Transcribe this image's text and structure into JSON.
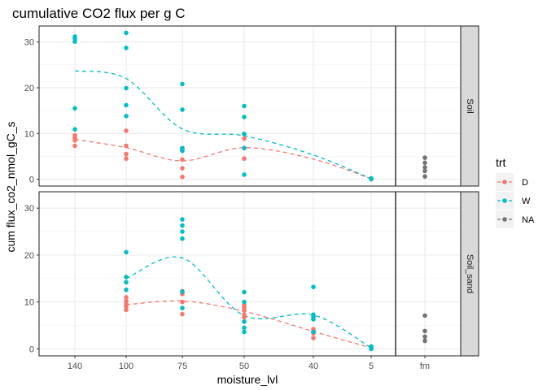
{
  "chart_data": {
    "type": "scatter",
    "title": "cumulative CO2 flux per g C",
    "xlabel": "moisture_lvl",
    "ylabel": "cum flux_co2_nmol_gC_s",
    "x_categories": [
      "140",
      "100",
      "75",
      "50",
      "40",
      "5",
      "fm"
    ],
    "ylim": [
      -1.5,
      33.5
    ],
    "y_ticks": [
      0,
      10,
      20,
      30
    ],
    "grid": true,
    "legend": {
      "title": "trt",
      "position": "right",
      "entries": [
        {
          "name": "D",
          "color": "#F8766D"
        },
        {
          "name": "W",
          "color": "#00BFC4"
        },
        {
          "name": "NA",
          "color": "#737373"
        }
      ]
    },
    "panels": [
      {
        "strip": "Soil",
        "points": [
          {
            "trt": "D",
            "x": "140",
            "y": [
              7.3,
              8.5,
              9.0,
              9.6
            ]
          },
          {
            "trt": "D",
            "x": "100",
            "y": [
              4.5,
              5.5,
              7.3,
              10.6
            ]
          },
          {
            "trt": "D",
            "x": "75",
            "y": [
              0.5,
              2.4,
              4.3,
              6.3,
              6.8
            ]
          },
          {
            "trt": "D",
            "x": "50",
            "y": [
              4.5,
              6.8,
              8.9
            ]
          },
          {
            "trt": "D",
            "x": "5",
            "y": [
              0.1
            ]
          },
          {
            "trt": "W",
            "x": "140",
            "y": [
              10.9,
              15.5,
              30.1,
              30.8,
              31.2
            ]
          },
          {
            "trt": "W",
            "x": "100",
            "y": [
              13.8,
              16.2,
              19.9,
              28.7,
              32.0
            ]
          },
          {
            "trt": "W",
            "x": "75",
            "y": [
              6.2,
              6.8,
              15.2,
              20.8
            ]
          },
          {
            "trt": "W",
            "x": "50",
            "y": [
              1.0,
              6.8,
              9.9,
              13.6,
              16.0
            ]
          },
          {
            "trt": "W",
            "x": "5",
            "y": [
              0.0,
              0.2
            ]
          },
          {
            "trt": "NA",
            "x": "fm",
            "y": [
              0.6,
              1.8,
              2.6,
              3.6,
              4.7
            ]
          }
        ],
        "lines": [
          {
            "trt": "D",
            "x": [
              "140",
              "100",
              "75",
              "50",
              "40",
              "5"
            ],
            "y": [
              8.7,
              6.9,
              4.0,
              6.9,
              4.4,
              0.1
            ]
          },
          {
            "trt": "W",
            "x": [
              "140",
              "100",
              "75",
              "50",
              "40",
              "5"
            ],
            "y": [
              23.7,
              22.0,
              11.0,
              9.5,
              5.3,
              0.1
            ]
          }
        ]
      },
      {
        "strip": "Soil_sand",
        "points": [
          {
            "trt": "D",
            "x": "140",
            "y": []
          },
          {
            "trt": "D",
            "x": "100",
            "y": [
              8.3,
              9.0,
              9.6,
              10.2,
              11.0
            ]
          },
          {
            "trt": "D",
            "x": "75",
            "y": [
              7.4,
              10.0,
              11.7,
              12.3
            ]
          },
          {
            "trt": "D",
            "x": "50",
            "y": [
              6.7,
              7.3,
              8.2,
              8.8,
              9.3
            ]
          },
          {
            "trt": "D",
            "x": "40",
            "y": [
              2.3,
              3.3,
              3.8,
              4.2,
              7.0
            ]
          },
          {
            "trt": "D",
            "x": "5",
            "y": [
              0.0,
              0.3,
              0.5
            ]
          },
          {
            "trt": "W",
            "x": "100",
            "y": [
              12.6,
              14.2,
              15.3,
              20.6
            ]
          },
          {
            "trt": "W",
            "x": "75",
            "y": [
              8.7,
              12.2,
              23.5,
              25.0,
              26.3,
              27.6
            ]
          },
          {
            "trt": "W",
            "x": "50",
            "y": [
              3.6,
              4.5,
              5.8,
              10.0,
              12.1
            ]
          },
          {
            "trt": "W",
            "x": "40",
            "y": [
              3.6,
              6.3,
              6.8,
              7.3,
              13.2
            ]
          },
          {
            "trt": "W",
            "x": "5",
            "y": [
              0.0,
              0.2,
              0.5
            ]
          },
          {
            "trt": "NA",
            "x": "fm",
            "y": [
              1.7,
              2.6,
              3.8,
              7.1
            ]
          }
        ],
        "lines": [
          {
            "trt": "D",
            "x": [
              "100",
              "75",
              "50",
              "40",
              "5"
            ],
            "y": [
              9.4,
              10.2,
              8.0,
              3.7,
              0.2
            ]
          },
          {
            "trt": "W",
            "x": [
              "100",
              "75",
              "50",
              "40",
              "5"
            ],
            "y": [
              15.0,
              19.4,
              7.1,
              7.2,
              0.2
            ]
          }
        ]
      }
    ]
  }
}
